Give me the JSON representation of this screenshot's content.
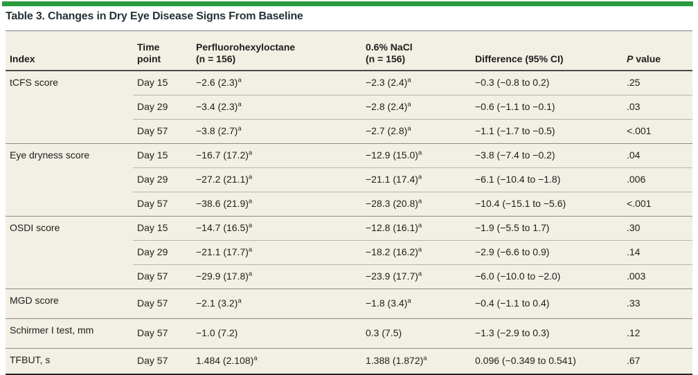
{
  "colors": {
    "accent_green": "#2b9a3e",
    "table_background": "#f2efe4",
    "title_text": "#263238"
  },
  "title": "Table 3. Changes in Dry Eye Disease Signs From Baseline",
  "table": {
    "columns": [
      {
        "id": "index",
        "lines": [
          "Index"
        ]
      },
      {
        "id": "time-point",
        "lines": [
          "Time",
          "point"
        ]
      },
      {
        "id": "perfluorohexyloctane",
        "lines": [
          "Perfluorohexyloctane",
          "(n = 156)"
        ]
      },
      {
        "id": "nacl",
        "lines": [
          "0.6% NaCl",
          "(n = 156)"
        ]
      },
      {
        "id": "difference",
        "lines": [
          "Difference (95% CI)"
        ]
      },
      {
        "id": "p-value",
        "lines": [
          "P value"
        ],
        "italic_prefix": "P"
      }
    ],
    "footnote_marker": "a",
    "groups": [
      {
        "index": "tCFS score",
        "rows": [
          {
            "time": "Day 15",
            "pfho": "−2.6 (2.3)",
            "pfho_sup": "a",
            "nacl": "−2.3 (2.4)",
            "nacl_sup": "a",
            "diff": "−0.3 (−0.8 to 0.2)",
            "p": ".25"
          },
          {
            "time": "Day 29",
            "pfho": "−3.4 (2.3)",
            "pfho_sup": "a",
            "nacl": "−2.8 (2.4)",
            "nacl_sup": "a",
            "diff": "−0.6 (−1.1 to −0.1)",
            "p": ".03"
          },
          {
            "time": "Day 57",
            "pfho": "−3.8 (2.7)",
            "pfho_sup": "a",
            "nacl": "−2.7 (2.8)",
            "nacl_sup": "a",
            "diff": "−1.1 (−1.7 to −0.5)",
            "p": "<.001"
          }
        ]
      },
      {
        "index": "Eye dryness score",
        "rows": [
          {
            "time": "Day 15",
            "pfho": "−16.7 (17.2)",
            "pfho_sup": "a",
            "nacl": "−12.9 (15.0)",
            "nacl_sup": "a",
            "diff": "−3.8 (−7.4 to −0.2)",
            "p": ".04"
          },
          {
            "time": "Day 29",
            "pfho": "−27.2 (21.1)",
            "pfho_sup": "a",
            "nacl": "−21.1 (17.4)",
            "nacl_sup": "a",
            "diff": "−6.1 (−10.4 to −1.8)",
            "p": ".006"
          },
          {
            "time": "Day 57",
            "pfho": "−38.6 (21.9)",
            "pfho_sup": "a",
            "nacl": "−28.3 (20.8)",
            "nacl_sup": "a",
            "diff": "−10.4 (−15.1 to −5.6)",
            "p": "<.001"
          }
        ]
      },
      {
        "index": "OSDI score",
        "rows": [
          {
            "time": "Day 15",
            "pfho": "−14.7 (16.5)",
            "pfho_sup": "a",
            "nacl": "−12.8 (16.1)",
            "nacl_sup": "a",
            "diff": "−1.9 (−5.5 to 1.7)",
            "p": ".30"
          },
          {
            "time": "Day 29",
            "pfho": "−21.1 (17.7)",
            "pfho_sup": "a",
            "nacl": "−18.2 (16.2)",
            "nacl_sup": "a",
            "diff": "−2.9 (−6.6 to 0.9)",
            "p": ".14"
          },
          {
            "time": "Day 57",
            "pfho": "−29.9 (17.8)",
            "pfho_sup": "a",
            "nacl": "−23.9 (17.7)",
            "nacl_sup": "a",
            "diff": "−6.0 (−10.0 to −2.0)",
            "p": ".003"
          }
        ]
      },
      {
        "index": "MGD score",
        "rows": [
          {
            "time": "Day 57",
            "pfho": "−2.1 (3.2)",
            "pfho_sup": "a",
            "nacl": "−1.8 (3.4)",
            "nacl_sup": "a",
            "diff": "−0.4 (−1.1 to 0.4)",
            "p": ".33"
          }
        ]
      },
      {
        "index": "Schirmer I test, mm",
        "rows": [
          {
            "time": "Day 57",
            "pfho": "−1.0 (7.2)",
            "pfho_sup": "",
            "nacl": "0.3 (7.5)",
            "nacl_sup": "",
            "diff": "−1.3 (−2.9 to 0.3)",
            "p": ".12"
          }
        ]
      },
      {
        "index": "TFBUT, s",
        "rows": [
          {
            "time": "Day 57",
            "pfho": "1.484 (2.108)",
            "pfho_sup": "a",
            "nacl": "1.388 (1.872)",
            "nacl_sup": "a",
            "diff": "0.096 (−0.349 to 0.541)",
            "p": ".67"
          }
        ]
      }
    ]
  }
}
